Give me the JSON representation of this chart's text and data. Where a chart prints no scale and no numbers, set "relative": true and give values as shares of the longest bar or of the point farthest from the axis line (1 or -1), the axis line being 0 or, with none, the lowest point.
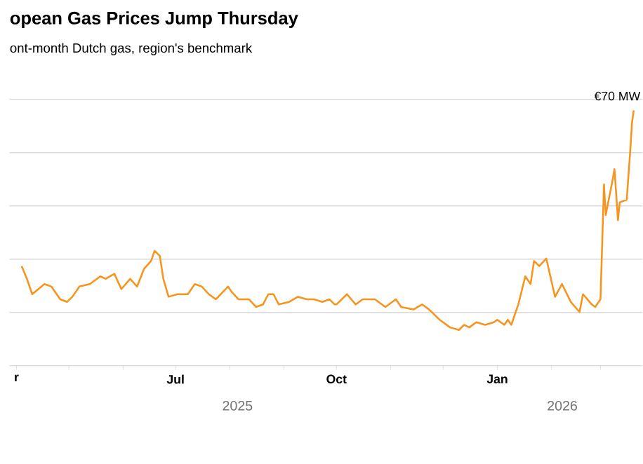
{
  "chart_data": {
    "type": "line",
    "title": "opean Gas Prices Jump Thursday",
    "subtitle": "ont-month Dutch gas, region's benchmark",
    "relative": true,
    "color": "#f7941d",
    "grid": "y",
    "xlim": [
      "2025-03-28",
      "2026-03-25"
    ],
    "xticks": [
      {
        "value": "2025-04-01",
        "label": "r"
      },
      {
        "value": "2025-05-01",
        "label": null
      },
      {
        "value": "2025-06-01",
        "label": null
      },
      {
        "value": "2025-07-01",
        "label": "Jul"
      },
      {
        "value": "2025-08-01",
        "label": null
      },
      {
        "value": "2025-09-01",
        "label": null
      },
      {
        "value": "2025-10-01",
        "label": "Oct"
      },
      {
        "value": "2025-11-01",
        "label": null
      },
      {
        "value": "2025-12-01",
        "label": null
      },
      {
        "value": "2026-01-01",
        "label": "Jan"
      },
      {
        "value": "2026-02-01",
        "label": null
      },
      {
        "value": "2026-03-01",
        "label": null
      }
    ],
    "annotations": [
      {
        "text": "€70 MW",
        "x": "2026-03-20",
        "y": 1
      },
      "2025",
      "2026"
    ],
    "x": [
      "2025-04-04",
      "2025-04-07",
      "2025-04-10",
      "2025-04-17",
      "2025-04-21",
      "2025-04-26",
      "2025-04-30",
      "2025-05-03",
      "2025-05-07",
      "2025-05-13",
      "2025-05-19",
      "2025-05-22",
      "2025-05-27",
      "2025-05-31",
      "2025-06-05",
      "2025-06-09",
      "2025-06-13",
      "2025-06-17",
      "2025-06-19",
      "2025-06-22",
      "2025-06-24",
      "2025-06-27",
      "2025-07-02",
      "2025-07-08",
      "2025-07-12",
      "2025-07-16",
      "2025-07-20",
      "2025-07-24",
      "2025-07-31",
      "2025-08-02",
      "2025-08-06",
      "2025-08-12",
      "2025-08-16",
      "2025-08-20",
      "2025-08-23",
      "2025-08-26",
      "2025-08-29",
      "2025-09-04",
      "2025-09-09",
      "2025-09-14",
      "2025-09-18",
      "2025-09-23",
      "2025-09-27",
      "2025-09-30",
      "2025-10-01",
      "2025-10-07",
      "2025-10-12",
      "2025-10-16",
      "2025-10-23",
      "2025-10-29",
      "2025-11-04",
      "2025-11-07",
      "2025-11-14",
      "2025-11-19",
      "2025-11-23",
      "2025-11-29",
      "2025-12-05",
      "2025-12-10",
      "2025-12-13",
      "2025-12-16",
      "2025-12-20",
      "2025-12-25",
      "2025-12-30",
      "2026-01-01",
      "2026-01-05",
      "2026-01-07",
      "2026-01-09",
      "2026-01-13",
      "2026-01-17",
      "2026-01-20",
      "2026-01-22",
      "2026-01-25",
      "2026-01-29",
      "2026-02-03",
      "2026-02-07",
      "2026-02-12",
      "2026-02-17",
      "2026-02-19",
      "2026-02-24",
      "2026-02-26",
      "2026-03-01",
      "2026-03-03",
      "2026-03-04",
      "2026-03-08",
      "2026-03-09",
      "2026-03-11",
      "2026-03-12",
      "2026-03-16",
      "2026-03-18",
      "2026-03-19",
      "2026-03-20"
    ],
    "values": [
      0.39,
      0.34,
      0.28,
      0.32,
      0.31,
      0.26,
      0.25,
      0.27,
      0.31,
      0.32,
      0.35,
      0.34,
      0.36,
      0.3,
      0.34,
      0.31,
      0.38,
      0.41,
      0.45,
      0.43,
      0.34,
      0.27,
      0.28,
      0.28,
      0.32,
      0.31,
      0.28,
      0.26,
      0.31,
      0.29,
      0.26,
      0.26,
      0.23,
      0.24,
      0.28,
      0.28,
      0.24,
      0.25,
      0.27,
      0.26,
      0.26,
      0.25,
      0.26,
      0.24,
      0.24,
      0.28,
      0.24,
      0.26,
      0.26,
      0.23,
      0.26,
      0.23,
      0.22,
      0.24,
      0.22,
      0.18,
      0.15,
      0.14,
      0.16,
      0.15,
      0.17,
      0.16,
      0.17,
      0.18,
      0.16,
      0.18,
      0.16,
      0.24,
      0.35,
      0.32,
      0.41,
      0.39,
      0.42,
      0.27,
      0.32,
      0.25,
      0.21,
      0.28,
      0.24,
      0.23,
      0.26,
      0.71,
      0.59,
      0.73,
      0.77,
      0.57,
      0.64,
      0.65,
      0.84,
      0.95,
      1.0
    ]
  }
}
